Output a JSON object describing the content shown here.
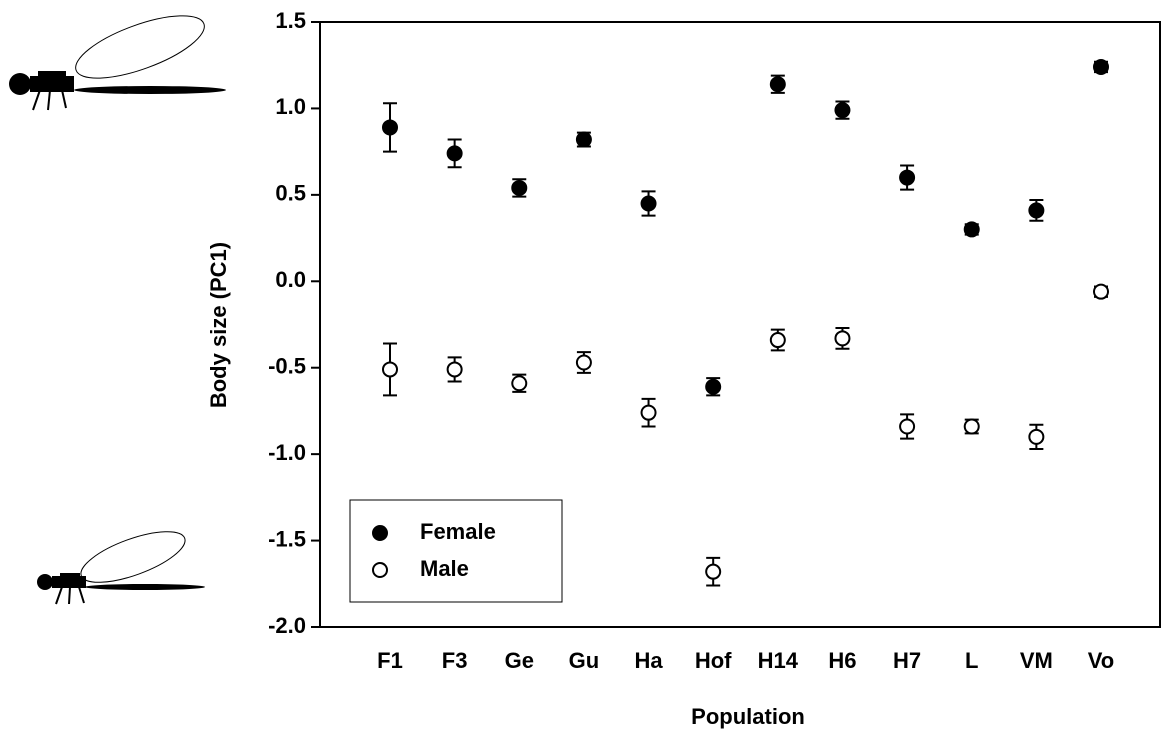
{
  "chart_data": {
    "type": "scatter",
    "x_label": "Population",
    "y_label": "Body size (PC1)",
    "categories": [
      "F1",
      "F3",
      "Ge",
      "Gu",
      "Ha",
      "Hof",
      "H14",
      "H6",
      "H7",
      "L",
      "VM",
      "Vo"
    ],
    "series": [
      {
        "name": "Female",
        "color": "#000000",
        "filled": true,
        "values": [
          0.89,
          0.74,
          0.54,
          0.82,
          0.45,
          -0.61,
          1.14,
          0.99,
          0.6,
          0.3,
          0.41,
          1.24
        ],
        "errors": [
          0.14,
          0.08,
          0.05,
          0.04,
          0.07,
          0.05,
          0.05,
          0.05,
          0.07,
          0.03,
          0.06,
          0.03
        ]
      },
      {
        "name": "Male",
        "color": "#000000",
        "filled": false,
        "values": [
          -0.51,
          -0.51,
          -0.59,
          -0.47,
          -0.76,
          -1.68,
          -0.34,
          -0.33,
          -0.84,
          -0.84,
          -0.9,
          -0.06
        ],
        "errors": [
          0.15,
          0.07,
          0.05,
          0.06,
          0.08,
          0.08,
          0.06,
          0.06,
          0.07,
          0.04,
          0.07,
          0.03
        ]
      }
    ],
    "ylim": [
      -2.0,
      1.5
    ],
    "yticks": [
      {
        "value": -2.0,
        "label": "-2.0"
      },
      -1.5,
      {
        "value": -1.0,
        "label": "-1.0"
      },
      -0.5,
      {
        "value": 0.0,
        "label": "0.0"
      },
      0.5,
      {
        "value": 1.0,
        "label": "1.0"
      },
      1.5
    ],
    "grid": false,
    "legend": "lower left"
  }
}
